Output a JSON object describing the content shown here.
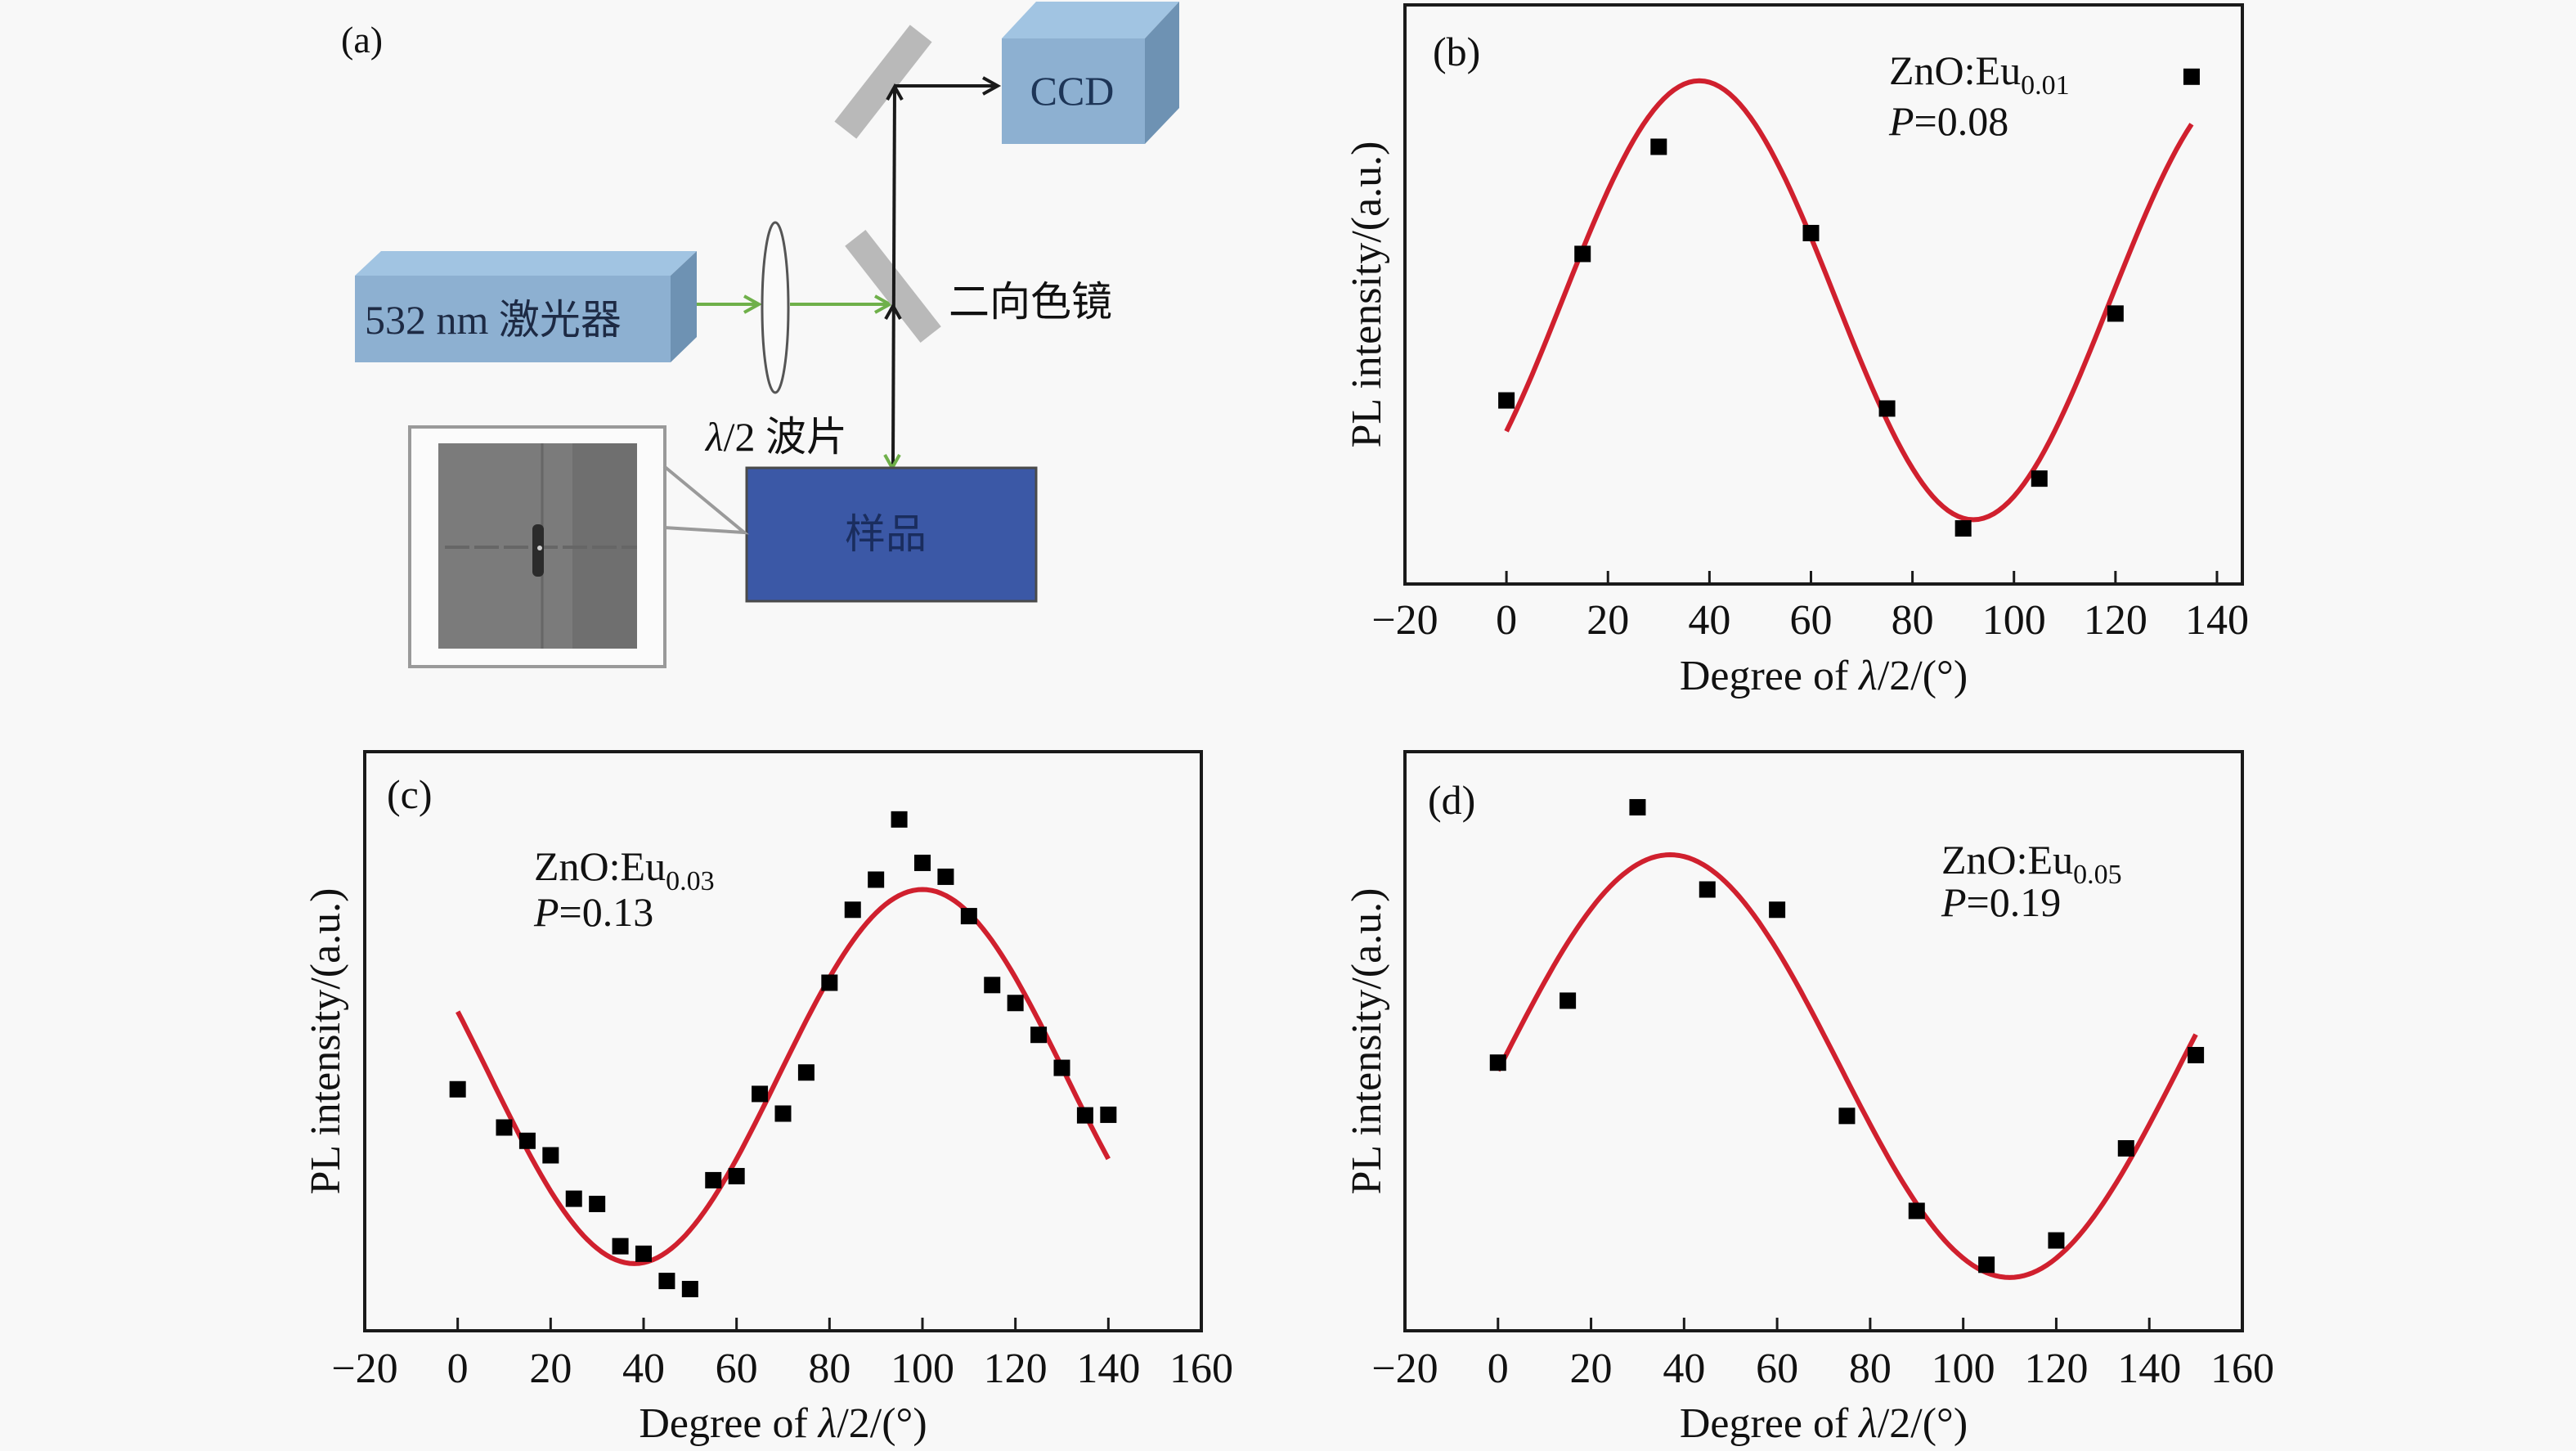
{
  "figure": {
    "panel_a": {
      "label": "(a)",
      "laser_label": "532 nm 激光器",
      "waveplate_label_prefix": "λ",
      "waveplate_label_suffix": "/2 波片",
      "dichroic_label": "二向色镜",
      "ccd_label": "CCD",
      "sample_label": "样品",
      "colors": {
        "box_front": "#8db0d1",
        "box_top": "#a1c4e2",
        "box_side": "#6e92b3",
        "sample": "#3b58a6",
        "mirror": "#b9b9b9",
        "excitation_beam": "#6fb04a",
        "emission_beam": "#1a1a1a",
        "inset_image": "#7a7a7a"
      }
    }
  },
  "chart_data": [
    {
      "id": "b",
      "type": "scatter",
      "panel_label": "(b)",
      "title": "",
      "annotation": {
        "material": "ZnO:Eu",
        "subscript": "0.01",
        "p_symbol": "P",
        "p_value": "=0.08"
      },
      "xlabel_prefix": "Degree of ",
      "xlabel_lambda": "λ",
      "xlabel_suffix": "/2/(°)",
      "ylabel": "PL intensity/(a.u.)",
      "xlim": [
        -20,
        145
      ],
      "ylim": [
        0,
        100
      ],
      "xticks": [
        -20,
        0,
        20,
        40,
        60,
        80,
        100,
        120,
        140
      ],
      "xtick_labels": [
        "−20",
        "0",
        "20",
        "40",
        "60",
        "80",
        "100",
        "120",
        "140"
      ],
      "grid": false,
      "series": [
        {
          "name": "measured",
          "kind": "points",
          "color": "#000000",
          "x": [
            0,
            15,
            30,
            60,
            75,
            90,
            105,
            120,
            135
          ],
          "y": [
            31.7,
            57.0,
            75.5,
            60.6,
            30.3,
            9.6,
            18.2,
            46.7,
            87.6
          ]
        },
        {
          "name": "fit",
          "kind": "sine-fit",
          "color": "#d0202e",
          "x_range": [
            0,
            135
          ],
          "offset": 49.0,
          "amplitude": 37.9,
          "phase_peak_deg": 38,
          "period_deg": 108
        }
      ]
    },
    {
      "id": "c",
      "type": "scatter",
      "panel_label": "(c)",
      "title": "",
      "annotation": {
        "material": "ZnO:Eu",
        "subscript": "0.03",
        "p_symbol": "P",
        "p_value": "=0.13"
      },
      "xlabel_prefix": "Degree of ",
      "xlabel_lambda": "λ",
      "xlabel_suffix": "/2/(°)",
      "ylabel": "PL intensity/(a.u.)",
      "xlim": [
        -20,
        160
      ],
      "ylim": [
        0,
        100
      ],
      "xticks": [
        -20,
        0,
        20,
        40,
        60,
        80,
        100,
        120,
        140,
        160
      ],
      "xtick_labels": [
        "−20",
        "0",
        "20",
        "40",
        "60",
        "80",
        "100",
        "120",
        "140",
        "160"
      ],
      "grid": false,
      "series": [
        {
          "name": "measured",
          "kind": "points",
          "color": "#000000",
          "x": [
            0,
            10,
            15,
            20,
            25,
            30,
            35,
            40,
            45,
            50,
            55,
            60,
            65,
            70,
            75,
            80,
            85,
            90,
            95,
            100,
            105,
            110,
            115,
            120,
            125,
            130,
            135,
            140
          ],
          "y": [
            41.7,
            35.1,
            32.8,
            30.3,
            22.8,
            21.9,
            14.6,
            13.3,
            8.6,
            7.2,
            26.0,
            26.7,
            40.9,
            37.5,
            44.6,
            60.1,
            72.7,
            77.9,
            88.3,
            80.8,
            78.4,
            71.6,
            59.7,
            56.6,
            51.1,
            45.4,
            37.2,
            37.3
          ]
        },
        {
          "name": "fit",
          "kind": "sine-fit",
          "color": "#d0202e",
          "x_range": [
            0,
            140
          ],
          "offset": 43.9,
          "amplitude": 32.3,
          "phase_peak_deg": 100,
          "period_deg": 124
        }
      ]
    },
    {
      "id": "d",
      "type": "scatter",
      "panel_label": "(d)",
      "title": "",
      "annotation": {
        "material": "ZnO:Eu",
        "subscript": "0.05",
        "p_symbol": "P",
        "p_value": "=0.19"
      },
      "xlabel_prefix": "Degree of ",
      "xlabel_lambda": "λ",
      "xlabel_suffix": "/2/(°)",
      "ylabel": "PL intensity/(a.u.)",
      "xlim": [
        -20,
        160
      ],
      "ylim": [
        0,
        100
      ],
      "xticks": [
        -20,
        0,
        20,
        40,
        60,
        80,
        100,
        120,
        140,
        160
      ],
      "xtick_labels": [
        "−20",
        "0",
        "20",
        "40",
        "60",
        "80",
        "100",
        "120",
        "140",
        "160"
      ],
      "grid": false,
      "series": [
        {
          "name": "measured",
          "kind": "points",
          "color": "#000000",
          "x": [
            0,
            15,
            30,
            45,
            60,
            75,
            90,
            105,
            120,
            135,
            150
          ],
          "y": [
            46.3,
            57.0,
            90.4,
            76.2,
            72.7,
            37.1,
            20.7,
            11.4,
            15.6,
            31.5,
            47.6
          ]
        },
        {
          "name": "fit",
          "kind": "sine-fit",
          "color": "#d0202e",
          "x_range": [
            0,
            150
          ],
          "offset": 45.7,
          "amplitude": 36.5,
          "phase_peak_deg": 37,
          "period_deg": 146
        }
      ]
    }
  ]
}
